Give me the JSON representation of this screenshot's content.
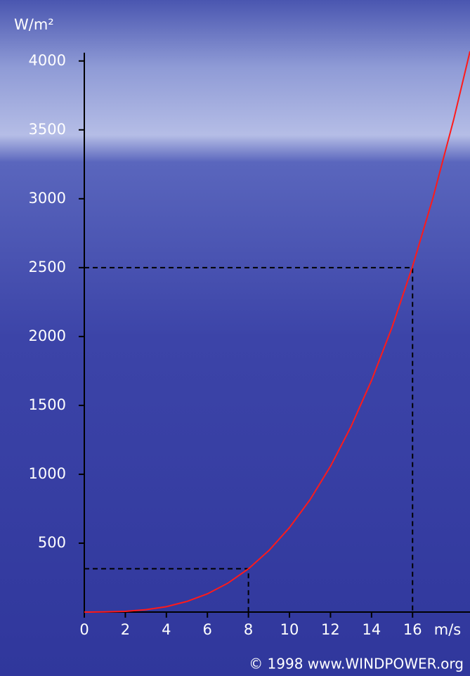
{
  "chart_data": {
    "type": "line",
    "y_label": "W/m²",
    "x_label": "m/s",
    "footer": "© 1998 www.WINDPOWER.org",
    "x": [
      0,
      1,
      2,
      3,
      4,
      5,
      6,
      7,
      8,
      9,
      10,
      11,
      12,
      13,
      14,
      15,
      16,
      17,
      18,
      18.8
    ],
    "series": [
      {
        "color": "#ff1a1a",
        "values": [
          0,
          1,
          5,
          17,
          39,
          77,
          132,
          210,
          314,
          447,
          613,
          815,
          1058,
          1346,
          1681,
          2067,
          2509,
          3009,
          3572,
          4070
        ]
      }
    ],
    "guides": [
      {
        "x": 8,
        "y": 314
      },
      {
        "x": 16,
        "y": 2500
      }
    ],
    "xlim": [
      0,
      18.8
    ],
    "xticks": [
      0,
      2,
      4,
      6,
      8,
      10,
      12,
      14,
      16
    ],
    "ylim": [
      0,
      4060
    ],
    "yticks": [
      500,
      1000,
      1500,
      2000,
      2500,
      3000,
      3500,
      4000
    ],
    "grid": false
  }
}
